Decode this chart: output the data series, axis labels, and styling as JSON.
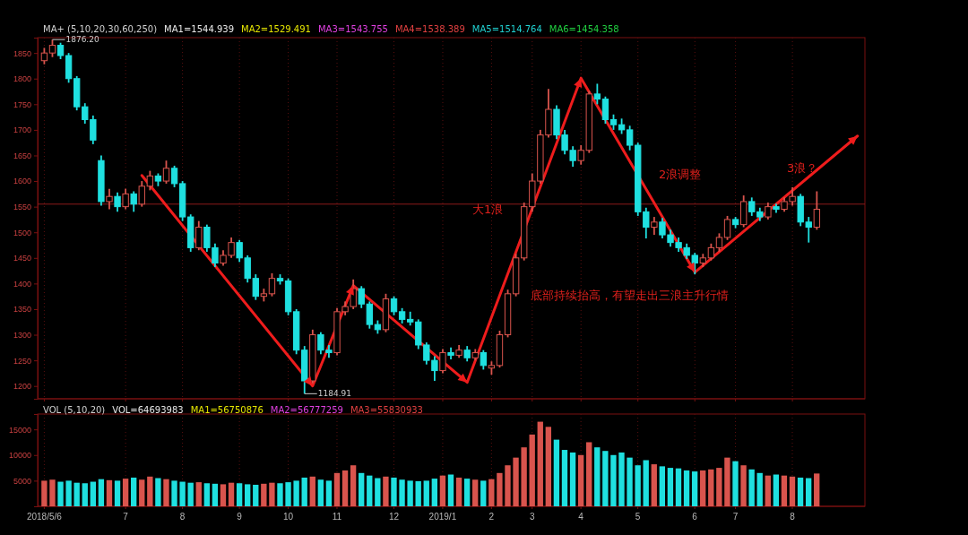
{
  "chart_data": [
    {
      "type": "candlestick",
      "title": "MA+ (5,10,20,30,60,250)",
      "annotations": [
        "MA1=1544.939",
        "MA2=1529.491",
        "MA3=1543.755",
        "MA4=1538.389",
        "MA5=1514.764",
        "MA6=1454.358",
        "1876.20",
        "1184.91",
        "大1浪",
        "2浪调整",
        "3浪？",
        "底部持续抬高，有望走出三浪主升行情"
      ],
      "categories": [
        "2018/5/6",
        null,
        null,
        null,
        null,
        null,
        null,
        null,
        null,
        null,
        "7",
        null,
        null,
        null,
        null,
        null,
        null,
        "8",
        null,
        null,
        null,
        null,
        null,
        null,
        "9",
        null,
        null,
        null,
        null,
        null,
        "10",
        null,
        null,
        null,
        null,
        null,
        "11",
        null,
        null,
        null,
        null,
        null,
        null,
        "12",
        null,
        null,
        null,
        null,
        null,
        "2019/1",
        null,
        null,
        null,
        null,
        null,
        "2",
        null,
        null,
        null,
        null,
        "3",
        null,
        null,
        null,
        null,
        null,
        "4",
        null,
        null,
        null,
        null,
        null,
        null,
        "5",
        null,
        null,
        null,
        null,
        null,
        null,
        "6",
        null,
        null,
        null,
        null,
        "7",
        null,
        null,
        null,
        null,
        null,
        null,
        "8",
        null,
        null,
        null,
        null,
        null,
        null,
        null,
        null
      ],
      "series": [
        {
          "type": "line",
          "color": "#ee1c1c",
          "values": [
            null,
            null,
            null,
            null,
            null,
            null,
            null,
            null,
            null,
            null,
            null,
            null,
            1611,
            null,
            null,
            null,
            null,
            null,
            null,
            null,
            null,
            null,
            null,
            null,
            null,
            null,
            null,
            null,
            null,
            null,
            null,
            null,
            null,
            1200,
            null,
            null,
            null,
            null,
            1396,
            null,
            null,
            null,
            null,
            null,
            null,
            null,
            null,
            null,
            null,
            null,
            null,
            null,
            1207,
            null,
            null,
            null,
            null,
            null,
            null,
            null,
            null,
            null,
            null,
            null,
            null,
            null,
            1801,
            null,
            null,
            null,
            null,
            null,
            null,
            null,
            null,
            null,
            null,
            null,
            null,
            null,
            1422,
            null,
            null,
            null,
            null,
            null,
            null,
            null,
            null,
            null,
            null,
            null,
            null,
            null,
            null,
            null,
            null,
            null,
            null,
            null,
            1688
          ]
        }
      ],
      "ohlc": [
        [
          1835,
          1860,
          1828,
          1850
        ],
        [
          1850,
          1876.2,
          1842,
          1865
        ],
        [
          1865,
          1870,
          1838,
          1845
        ],
        [
          1845,
          1850,
          1792,
          1800
        ],
        [
          1800,
          1805,
          1738,
          1745
        ],
        [
          1745,
          1752,
          1712,
          1720
        ],
        [
          1720,
          1728,
          1672,
          1680
        ],
        [
          1640,
          1650,
          1552,
          1560
        ],
        [
          1560,
          1585,
          1545,
          1570
        ],
        [
          1570,
          1578,
          1540,
          1550
        ],
        [
          1550,
          1585,
          1545,
          1575
        ],
        [
          1575,
          1580,
          1540,
          1555
        ],
        [
          1555,
          1600,
          1550,
          1590
        ],
        [
          1590,
          1620,
          1582,
          1610
        ],
        [
          1610,
          1615,
          1590,
          1600
        ],
        [
          1600,
          1640,
          1595,
          1625
        ],
        [
          1625,
          1630,
          1588,
          1595
        ],
        [
          1595,
          1600,
          1522,
          1530
        ],
        [
          1530,
          1535,
          1462,
          1470
        ],
        [
          1470,
          1522,
          1465,
          1510
        ],
        [
          1510,
          1515,
          1462,
          1470
        ],
        [
          1470,
          1478,
          1432,
          1440
        ],
        [
          1440,
          1465,
          1435,
          1455
        ],
        [
          1455,
          1490,
          1450,
          1480
        ],
        [
          1480,
          1485,
          1442,
          1450
        ],
        [
          1450,
          1455,
          1402,
          1410
        ],
        [
          1410,
          1418,
          1368,
          1375
        ],
        [
          1375,
          1390,
          1365,
          1380
        ],
        [
          1380,
          1420,
          1375,
          1410
        ],
        [
          1410,
          1418,
          1398,
          1405
        ],
        [
          1405,
          1410,
          1338,
          1345
        ],
        [
          1345,
          1350,
          1262,
          1270
        ],
        [
          1270,
          1278,
          1184.91,
          1210
        ],
        [
          1210,
          1310,
          1205,
          1300
        ],
        [
          1300,
          1305,
          1262,
          1270
        ],
        [
          1270,
          1280,
          1255,
          1265
        ],
        [
          1265,
          1352,
          1260,
          1345
        ],
        [
          1345,
          1365,
          1338,
          1355
        ],
        [
          1355,
          1408,
          1350,
          1390
        ],
        [
          1390,
          1395,
          1352,
          1360
        ],
        [
          1360,
          1365,
          1312,
          1320
        ],
        [
          1320,
          1328,
          1302,
          1310
        ],
        [
          1310,
          1380,
          1305,
          1370
        ],
        [
          1370,
          1375,
          1338,
          1345
        ],
        [
          1345,
          1352,
          1322,
          1330
        ],
        [
          1330,
          1345,
          1318,
          1325
        ],
        [
          1325,
          1330,
          1272,
          1280
        ],
        [
          1280,
          1285,
          1242,
          1250
        ],
        [
          1250,
          1258,
          1210,
          1230
        ],
        [
          1230,
          1272,
          1225,
          1265
        ],
        [
          1265,
          1275,
          1252,
          1260
        ],
        [
          1260,
          1280,
          1255,
          1270
        ],
        [
          1270,
          1278,
          1248,
          1255
        ],
        [
          1255,
          1272,
          1250,
          1265
        ],
        [
          1265,
          1270,
          1232,
          1240
        ],
        [
          1235,
          1248,
          1222,
          1240
        ],
        [
          1240,
          1308,
          1236,
          1300
        ],
        [
          1300,
          1388,
          1295,
          1380
        ],
        [
          1380,
          1458,
          1375,
          1450
        ],
        [
          1450,
          1558,
          1445,
          1550
        ],
        [
          1550,
          1615,
          1540,
          1600
        ],
        [
          1600,
          1700,
          1595,
          1690
        ],
        [
          1690,
          1780,
          1685,
          1740
        ],
        [
          1740,
          1748,
          1682,
          1690
        ],
        [
          1690,
          1700,
          1652,
          1660
        ],
        [
          1660,
          1668,
          1628,
          1640
        ],
        [
          1640,
          1670,
          1632,
          1660
        ],
        [
          1660,
          1776,
          1655,
          1770
        ],
        [
          1770,
          1790,
          1750,
          1760
        ],
        [
          1760,
          1765,
          1712,
          1720
        ],
        [
          1720,
          1730,
          1700,
          1710
        ],
        [
          1710,
          1722,
          1692,
          1700
        ],
        [
          1700,
          1708,
          1660,
          1670
        ],
        [
          1670,
          1675,
          1532,
          1540
        ],
        [
          1540,
          1548,
          1488,
          1510
        ],
        [
          1510,
          1530,
          1495,
          1520
        ],
        [
          1520,
          1528,
          1488,
          1495
        ],
        [
          1495,
          1505,
          1472,
          1480
        ],
        [
          1480,
          1490,
          1462,
          1470
        ],
        [
          1470,
          1478,
          1448,
          1455
        ],
        [
          1455,
          1460,
          1418,
          1440
        ],
        [
          1440,
          1458,
          1432,
          1450
        ],
        [
          1450,
          1478,
          1445,
          1470
        ],
        [
          1470,
          1498,
          1462,
          1490
        ],
        [
          1490,
          1532,
          1485,
          1525
        ],
        [
          1525,
          1530,
          1508,
          1515
        ],
        [
          1515,
          1572,
          1510,
          1560
        ],
        [
          1560,
          1568,
          1532,
          1540
        ],
        [
          1540,
          1548,
          1522,
          1530
        ],
        [
          1530,
          1558,
          1525,
          1550
        ],
        [
          1550,
          1556,
          1538,
          1545
        ],
        [
          1545,
          1568,
          1540,
          1560
        ],
        [
          1560,
          1588,
          1552,
          1570
        ],
        [
          1570,
          1575,
          1512,
          1520
        ],
        [
          1520,
          1530,
          1480,
          1510
        ],
        [
          1510,
          1580,
          1505,
          1545
        ],
        null,
        null,
        null,
        null,
        null
      ],
      "colors": [
        "#d9544d",
        "#d9544d",
        "#1fe0e0",
        "#1fe0e0",
        "#1fe0e0",
        "#1fe0e0",
        "#1fe0e0",
        "#1fe0e0",
        "#d9544d",
        "#1fe0e0",
        "#d9544d",
        "#1fe0e0",
        "#d9544d",
        "#d9544d",
        "#1fe0e0",
        "#d9544d",
        "#1fe0e0",
        "#1fe0e0",
        "#1fe0e0",
        "#d9544d",
        "#1fe0e0",
        "#1fe0e0",
        "#d9544d",
        "#d9544d",
        "#1fe0e0",
        "#1fe0e0",
        "#1fe0e0",
        "#d9544d",
        "#d9544d",
        "#1fe0e0",
        "#1fe0e0",
        "#1fe0e0",
        "#1fe0e0",
        "#d9544d",
        "#1fe0e0",
        "#1fe0e0",
        "#d9544d",
        "#d9544d",
        "#d9544d",
        "#1fe0e0",
        "#1fe0e0",
        "#1fe0e0",
        "#d9544d",
        "#1fe0e0",
        "#1fe0e0",
        "#1fe0e0",
        "#1fe0e0",
        "#1fe0e0",
        "#1fe0e0",
        "#d9544d",
        "#1fe0e0",
        "#d9544d",
        "#1fe0e0",
        "#d9544d",
        "#1fe0e0",
        "#d9544d",
        "#d9544d",
        "#d9544d",
        "#d9544d",
        "#d9544d",
        "#d9544d",
        "#d9544d",
        "#d9544d",
        "#1fe0e0",
        "#1fe0e0",
        "#1fe0e0",
        "#d9544d",
        "#d9544d",
        "#1fe0e0",
        "#1fe0e0",
        "#1fe0e0",
        "#1fe0e0",
        "#1fe0e0",
        "#1fe0e0",
        "#1fe0e0",
        "#d9544d",
        "#1fe0e0",
        "#1fe0e0",
        "#1fe0e0",
        "#1fe0e0",
        "#1fe0e0",
        "#d9544d",
        "#d9544d",
        "#d9544d",
        "#d9544d",
        "#1fe0e0",
        "#d9544d",
        "#1fe0e0",
        "#1fe0e0",
        "#d9544d",
        "#1fe0e0",
        "#d9544d",
        "#d9544d",
        "#1fe0e0",
        "#1fe0e0",
        "#d9544d",
        null,
        null,
        null,
        null,
        null
      ],
      "ylim": [
        1175,
        1880
      ],
      "yticks": [
        1200,
        1250,
        1300,
        1350,
        1400,
        1450,
        1500,
        1550,
        1600,
        1650,
        1700,
        1750,
        1800,
        1850
      ],
      "ref_lines": [
        {
          "axis": "y",
          "value": 1555,
          "color": "#8b1a1a"
        }
      ],
      "grid": "x",
      "tick_labels": "y"
    },
    {
      "type": "bar",
      "title": "VOL (5,10,20)",
      "annotations": [
        "VOL=64693983",
        "MA1=56750876",
        "MA2=56777259",
        "MA3=55830933"
      ],
      "categories": [
        "2018/5/6",
        null,
        null,
        null,
        null,
        null,
        null,
        null,
        null,
        null,
        "7",
        null,
        null,
        null,
        null,
        null,
        null,
        "8",
        null,
        null,
        null,
        null,
        null,
        null,
        "9",
        null,
        null,
        null,
        null,
        null,
        "10",
        null,
        null,
        null,
        null,
        null,
        "11",
        null,
        null,
        null,
        null,
        null,
        null,
        "12",
        null,
        null,
        null,
        null,
        null,
        "2019/1",
        null,
        null,
        null,
        null,
        null,
        "2",
        null,
        null,
        null,
        null,
        "3",
        null,
        null,
        null,
        null,
        null,
        "4",
        null,
        null,
        null,
        null,
        null,
        null,
        "5",
        null,
        null,
        null,
        null,
        null,
        null,
        "6",
        null,
        null,
        null,
        null,
        "7",
        null,
        null,
        null,
        null,
        null,
        null,
        "8",
        null,
        null,
        null
      ],
      "values": [
        5000,
        5200,
        4800,
        5000,
        4600,
        4500,
        4800,
        5300,
        5100,
        5000,
        5400,
        5600,
        5200,
        5800,
        5500,
        5300,
        5000,
        4800,
        4600,
        4700,
        4500,
        4400,
        4300,
        4600,
        4500,
        4300,
        4200,
        4400,
        4600,
        4500,
        4700,
        5000,
        5600,
        5800,
        5200,
        5000,
        6500,
        7000,
        8000,
        6500,
        6000,
        5500,
        5800,
        5600,
        5200,
        5000,
        4900,
        5000,
        5400,
        6000,
        6200,
        5600,
        5400,
        5200,
        5000,
        5300,
        6500,
        8000,
        9500,
        11500,
        14000,
        16500,
        15500,
        13000,
        11000,
        10500,
        10000,
        12500,
        11500,
        10800,
        10000,
        10500,
        9500,
        8000,
        9000,
        8200,
        7800,
        7500,
        7400,
        7000,
        6800,
        7000,
        7200,
        7500,
        9500,
        8800,
        8000,
        7200,
        6500,
        6000,
        6200,
        6000,
        5800,
        5600,
        5500,
        6400
      ],
      "colors": [
        "#d9544d",
        "#d9544d",
        "#1fe0e0",
        "#1fe0e0",
        "#1fe0e0",
        "#1fe0e0",
        "#1fe0e0",
        "#1fe0e0",
        "#d9544d",
        "#1fe0e0",
        "#d9544d",
        "#1fe0e0",
        "#d9544d",
        "#d9544d",
        "#1fe0e0",
        "#d9544d",
        "#1fe0e0",
        "#1fe0e0",
        "#1fe0e0",
        "#d9544d",
        "#1fe0e0",
        "#1fe0e0",
        "#d9544d",
        "#d9544d",
        "#1fe0e0",
        "#1fe0e0",
        "#1fe0e0",
        "#d9544d",
        "#d9544d",
        "#1fe0e0",
        "#1fe0e0",
        "#1fe0e0",
        "#1fe0e0",
        "#d9544d",
        "#1fe0e0",
        "#1fe0e0",
        "#d9544d",
        "#d9544d",
        "#d9544d",
        "#1fe0e0",
        "#1fe0e0",
        "#1fe0e0",
        "#d9544d",
        "#1fe0e0",
        "#1fe0e0",
        "#1fe0e0",
        "#1fe0e0",
        "#1fe0e0",
        "#1fe0e0",
        "#d9544d",
        "#1fe0e0",
        "#d9544d",
        "#1fe0e0",
        "#d9544d",
        "#1fe0e0",
        "#d9544d",
        "#d9544d",
        "#d9544d",
        "#d9544d",
        "#d9544d",
        "#d9544d",
        "#d9544d",
        "#d9544d",
        "#1fe0e0",
        "#1fe0e0",
        "#1fe0e0",
        "#d9544d",
        "#d9544d",
        "#1fe0e0",
        "#1fe0e0",
        "#1fe0e0",
        "#1fe0e0",
        "#1fe0e0",
        "#1fe0e0",
        "#1fe0e0",
        "#d9544d",
        "#1fe0e0",
        "#1fe0e0",
        "#1fe0e0",
        "#1fe0e0",
        "#1fe0e0",
        "#d9544d",
        "#d9544d",
        "#d9544d",
        "#d9544d",
        "#1fe0e0",
        "#d9544d",
        "#1fe0e0",
        "#1fe0e0",
        "#d9544d",
        "#1fe0e0",
        "#d9544d",
        "#d9544d",
        "#1fe0e0",
        "#1fe0e0",
        "#d9544d"
      ],
      "ylim": [
        0,
        18000
      ],
      "yticks": [
        5000,
        10000,
        15000
      ],
      "grid": "x"
    }
  ]
}
